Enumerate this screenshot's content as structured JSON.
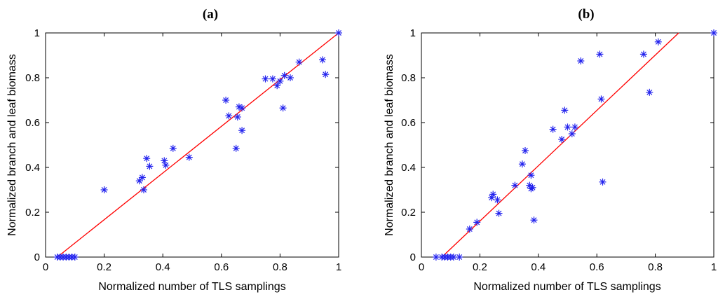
{
  "figure": {
    "marker_color": "#2222ee",
    "fit_color": "#ff0000"
  },
  "chart_data": [
    {
      "panel": "(a)",
      "type": "scatter",
      "title": "(a)",
      "xlabel": "Normalized number of TLS samplings",
      "ylabel": "Normalized branch and leaf biomass",
      "xlim": [
        0,
        1
      ],
      "ylim": [
        0,
        1
      ],
      "xticks": [
        "0",
        "0.2",
        "0.4",
        "0.6",
        "0.8",
        "1"
      ],
      "yticks": [
        "0",
        "0.2",
        "0.4",
        "0.6",
        "0.8",
        "1"
      ],
      "marker": "asterisk",
      "grid": false,
      "fit_line": {
        "x": [
          0.04,
          1.0
        ],
        "y": [
          0.0,
          1.0
        ]
      },
      "points": [
        [
          0.04,
          0.0
        ],
        [
          0.05,
          0.0
        ],
        [
          0.06,
          0.0
        ],
        [
          0.07,
          0.0
        ],
        [
          0.08,
          0.0
        ],
        [
          0.09,
          0.0
        ],
        [
          0.1,
          0.0
        ],
        [
          0.2,
          0.3
        ],
        [
          0.32,
          0.34
        ],
        [
          0.33,
          0.355
        ],
        [
          0.335,
          0.3
        ],
        [
          0.345,
          0.44
        ],
        [
          0.355,
          0.405
        ],
        [
          0.405,
          0.43
        ],
        [
          0.41,
          0.41
        ],
        [
          0.435,
          0.485
        ],
        [
          0.49,
          0.445
        ],
        [
          0.615,
          0.7
        ],
        [
          0.625,
          0.63
        ],
        [
          0.65,
          0.485
        ],
        [
          0.655,
          0.625
        ],
        [
          0.66,
          0.67
        ],
        [
          0.67,
          0.665
        ],
        [
          0.67,
          0.565
        ],
        [
          0.75,
          0.795
        ],
        [
          0.775,
          0.795
        ],
        [
          0.79,
          0.765
        ],
        [
          0.8,
          0.785
        ],
        [
          0.81,
          0.665
        ],
        [
          0.815,
          0.81
        ],
        [
          0.835,
          0.8
        ],
        [
          0.865,
          0.87
        ],
        [
          0.945,
          0.88
        ],
        [
          0.955,
          0.815
        ],
        [
          1.0,
          1.0
        ]
      ]
    },
    {
      "panel": "(b)",
      "type": "scatter",
      "title": "(b)",
      "xlabel": "Normalized number of TLS samplings",
      "ylabel": "Normalized branch and leaf biomass",
      "xlim": [
        0,
        1
      ],
      "ylim": [
        0,
        1
      ],
      "xticks": [
        "0",
        "0.2",
        "0.4",
        "0.6",
        "0.8",
        "1"
      ],
      "yticks": [
        "0",
        "0.2",
        "0.4",
        "0.6",
        "0.8",
        "1"
      ],
      "marker": "asterisk",
      "grid": false,
      "fit_line": {
        "x": [
          0.07,
          0.88
        ],
        "y": [
          0.0,
          1.0
        ]
      },
      "points": [
        [
          0.05,
          0.0
        ],
        [
          0.07,
          0.0
        ],
        [
          0.08,
          0.0
        ],
        [
          0.09,
          0.0
        ],
        [
          0.1,
          0.0
        ],
        [
          0.11,
          0.0
        ],
        [
          0.13,
          0.0
        ],
        [
          0.165,
          0.125
        ],
        [
          0.19,
          0.155
        ],
        [
          0.24,
          0.265
        ],
        [
          0.245,
          0.28
        ],
        [
          0.26,
          0.255
        ],
        [
          0.265,
          0.195
        ],
        [
          0.32,
          0.32
        ],
        [
          0.345,
          0.415
        ],
        [
          0.355,
          0.475
        ],
        [
          0.37,
          0.32
        ],
        [
          0.375,
          0.365
        ],
        [
          0.375,
          0.305
        ],
        [
          0.38,
          0.31
        ],
        [
          0.385,
          0.165
        ],
        [
          0.45,
          0.57
        ],
        [
          0.48,
          0.525
        ],
        [
          0.49,
          0.655
        ],
        [
          0.5,
          0.58
        ],
        [
          0.515,
          0.55
        ],
        [
          0.525,
          0.58
        ],
        [
          0.545,
          0.875
        ],
        [
          0.61,
          0.905
        ],
        [
          0.615,
          0.705
        ],
        [
          0.62,
          0.335
        ],
        [
          0.76,
          0.905
        ],
        [
          0.78,
          0.735
        ],
        [
          0.81,
          0.96
        ],
        [
          1.0,
          1.0
        ]
      ]
    }
  ]
}
